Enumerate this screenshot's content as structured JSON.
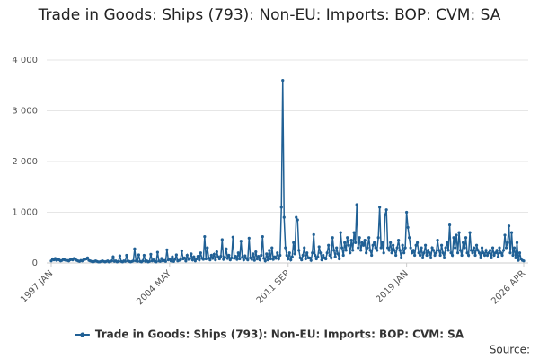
{
  "chart_data": {
    "type": "line",
    "title": "Trade in Goods: Ships (793): Non-EU: Imports: BOP: CVM: SA",
    "source": "Source:",
    "categories": [
      "1997 JAN",
      null,
      null,
      null,
      null,
      null,
      null,
      null,
      null,
      null,
      null,
      null,
      null,
      null,
      null,
      null,
      null,
      null,
      null,
      null,
      null,
      null,
      null,
      null,
      null,
      null,
      null,
      null,
      null,
      null,
      null,
      null,
      null,
      null,
      null,
      null,
      null,
      null,
      null,
      null,
      null,
      null,
      null,
      null,
      null,
      null,
      null,
      null,
      null,
      null,
      null,
      null,
      null,
      null,
      null,
      null,
      null,
      null,
      null,
      null,
      null,
      null,
      null,
      null,
      null,
      null,
      null,
      null,
      null,
      null,
      null,
      null,
      null,
      null,
      null,
      null,
      null,
      null,
      null,
      null,
      null,
      null,
      null,
      null,
      null,
      null,
      null,
      null,
      "2004 MAY",
      null,
      null,
      null,
      null,
      null,
      null,
      null,
      null,
      null,
      null,
      null,
      null,
      null,
      null,
      null,
      null,
      null,
      null,
      null,
      null,
      null,
      null,
      null,
      null,
      null,
      null,
      null,
      null,
      null,
      null,
      null,
      null,
      null,
      null,
      null,
      null,
      null,
      null,
      null,
      null,
      null,
      null,
      null,
      null,
      null,
      null,
      null,
      null,
      null,
      null,
      null,
      null,
      null,
      null,
      null,
      null,
      null,
      null,
      null,
      null,
      null,
      null,
      null,
      null,
      null,
      null,
      null,
      null,
      null,
      null,
      null,
      null,
      null,
      null,
      null,
      null,
      null,
      null,
      null,
      null,
      null,
      null,
      null,
      null,
      null,
      null,
      null,
      "2011 SEP",
      null,
      null,
      null,
      null,
      null,
      null,
      null,
      null,
      null,
      null,
      null,
      null,
      null,
      null,
      null,
      null,
      null,
      null,
      null,
      null,
      null,
      null,
      null,
      null,
      null,
      null,
      null,
      null,
      null,
      null,
      null,
      null,
      null,
      null,
      null,
      null,
      null,
      null,
      null,
      null,
      null,
      null,
      null,
      null,
      null,
      null,
      null,
      null,
      null,
      null,
      null,
      null,
      null,
      null,
      null,
      null,
      null,
      null,
      null,
      null,
      null,
      null,
      null,
      null,
      null,
      null,
      null,
      null,
      null,
      null,
      null,
      null,
      null,
      null,
      null,
      null,
      null,
      null,
      null,
      null,
      null,
      null,
      null,
      null,
      null,
      null,
      null,
      "2019 JAN",
      null,
      null,
      null,
      null,
      null,
      null,
      null,
      null,
      null,
      null,
      null,
      null,
      null,
      null,
      null,
      null,
      null,
      null,
      null,
      null,
      null,
      null,
      null,
      null,
      null,
      null,
      null,
      null,
      null,
      null,
      null,
      null,
      null,
      null,
      null,
      null,
      null,
      null,
      null,
      null,
      null,
      null,
      null,
      null,
      null,
      null,
      null,
      null,
      null,
      null,
      null,
      null,
      null,
      null,
      null,
      null,
      null,
      null,
      null,
      null,
      null,
      null,
      null,
      null,
      null,
      null,
      null,
      null,
      null,
      null,
      null,
      null,
      null,
      null,
      null,
      null,
      null,
      null,
      null,
      null,
      null,
      null,
      null,
      null,
      null,
      null,
      "2026 APR"
    ],
    "series": [
      {
        "name": "Trade in Goods: Ships (793): Non-EU: Imports: BOP: CVM: SA",
        "color": "#206095",
        "values": [
          40,
          80,
          60,
          90,
          50,
          70,
          60,
          40,
          50,
          70,
          60,
          50,
          50,
          40,
          60,
          70,
          60,
          90,
          80,
          50,
          40,
          30,
          50,
          40,
          60,
          70,
          80,
          100,
          50,
          40,
          30,
          20,
          30,
          40,
          30,
          20,
          20,
          30,
          40,
          30,
          20,
          30,
          40,
          20,
          30,
          40,
          120,
          30,
          40,
          20,
          30,
          140,
          30,
          20,
          40,
          30,
          150,
          40,
          30,
          20,
          30,
          40,
          280,
          40,
          30,
          160,
          30,
          20,
          40,
          150,
          30,
          40,
          20,
          30,
          170,
          40,
          60,
          30,
          20,
          210,
          40,
          30,
          90,
          40,
          50,
          30,
          260,
          60,
          80,
          40,
          120,
          30,
          70,
          160,
          40,
          50,
          60,
          240,
          80,
          100,
          40,
          150,
          70,
          90,
          180,
          60,
          120,
          40,
          80,
          130,
          60,
          200,
          90,
          70,
          520,
          80,
          300,
          100,
          60,
          150,
          90,
          170,
          60,
          220,
          120,
          80,
          130,
          460,
          70,
          110,
          280,
          90,
          150,
          60,
          100,
          510,
          90,
          130,
          70,
          200,
          80,
          430,
          110,
          60,
          140,
          90,
          60,
          490,
          100,
          70,
          180,
          50,
          220,
          80,
          130,
          60,
          150,
          520,
          90,
          40,
          180,
          60,
          250,
          80,
          300,
          70,
          120,
          90,
          200,
          80,
          150,
          1100,
          3600,
          900,
          300,
          150,
          80,
          200,
          60,
          120,
          400,
          180,
          900,
          850,
          250,
          100,
          60,
          150,
          300,
          80,
          200,
          100,
          100,
          50,
          200,
          560,
          150,
          80,
          120,
          320,
          200,
          60,
          150,
          100,
          80,
          200,
          350,
          150,
          100,
          500,
          250,
          120,
          300,
          180,
          80,
          600,
          300,
          150,
          400,
          250,
          500,
          350,
          200,
          450,
          250,
          600,
          400,
          1150,
          300,
          500,
          250,
          400,
          350,
          450,
          200,
          300,
          500,
          250,
          150,
          350,
          400,
          300,
          250,
          500,
          1100,
          300,
          400,
          200,
          950,
          1050,
          300,
          250,
          400,
          200,
          350,
          250,
          150,
          300,
          450,
          250,
          100,
          350,
          200,
          300,
          1000,
          700,
          500,
          300,
          200,
          250,
          150,
          350,
          400,
          200,
          150,
          300,
          100,
          200,
          350,
          150,
          250,
          200,
          100,
          300,
          250,
          150,
          200,
          450,
          250,
          150,
          350,
          200,
          100,
          300,
          400,
          250,
          750,
          200,
          150,
          500,
          300,
          550,
          200,
          600,
          250,
          150,
          400,
          300,
          500,
          200,
          150,
          600,
          250,
          200,
          300,
          150,
          350,
          250,
          200,
          100,
          300,
          200,
          150,
          250,
          150,
          200,
          250,
          100,
          300,
          150,
          200,
          250,
          120,
          300,
          200,
          150,
          250,
          550,
          300,
          400,
          730,
          200,
          600,
          150,
          300,
          100,
          400,
          50,
          200,
          80,
          50,
          40
        ]
      }
    ],
    "ylim": [
      0,
      4000
    ],
    "yticks": [
      0,
      {
        "value": 1000,
        "label": "1 000"
      },
      {
        "value": 2000,
        "label": "2 000"
      },
      {
        "value": 3000,
        "label": "3 000"
      },
      {
        "value": 4000,
        "label": "4 000"
      }
    ],
    "grid": true
  }
}
